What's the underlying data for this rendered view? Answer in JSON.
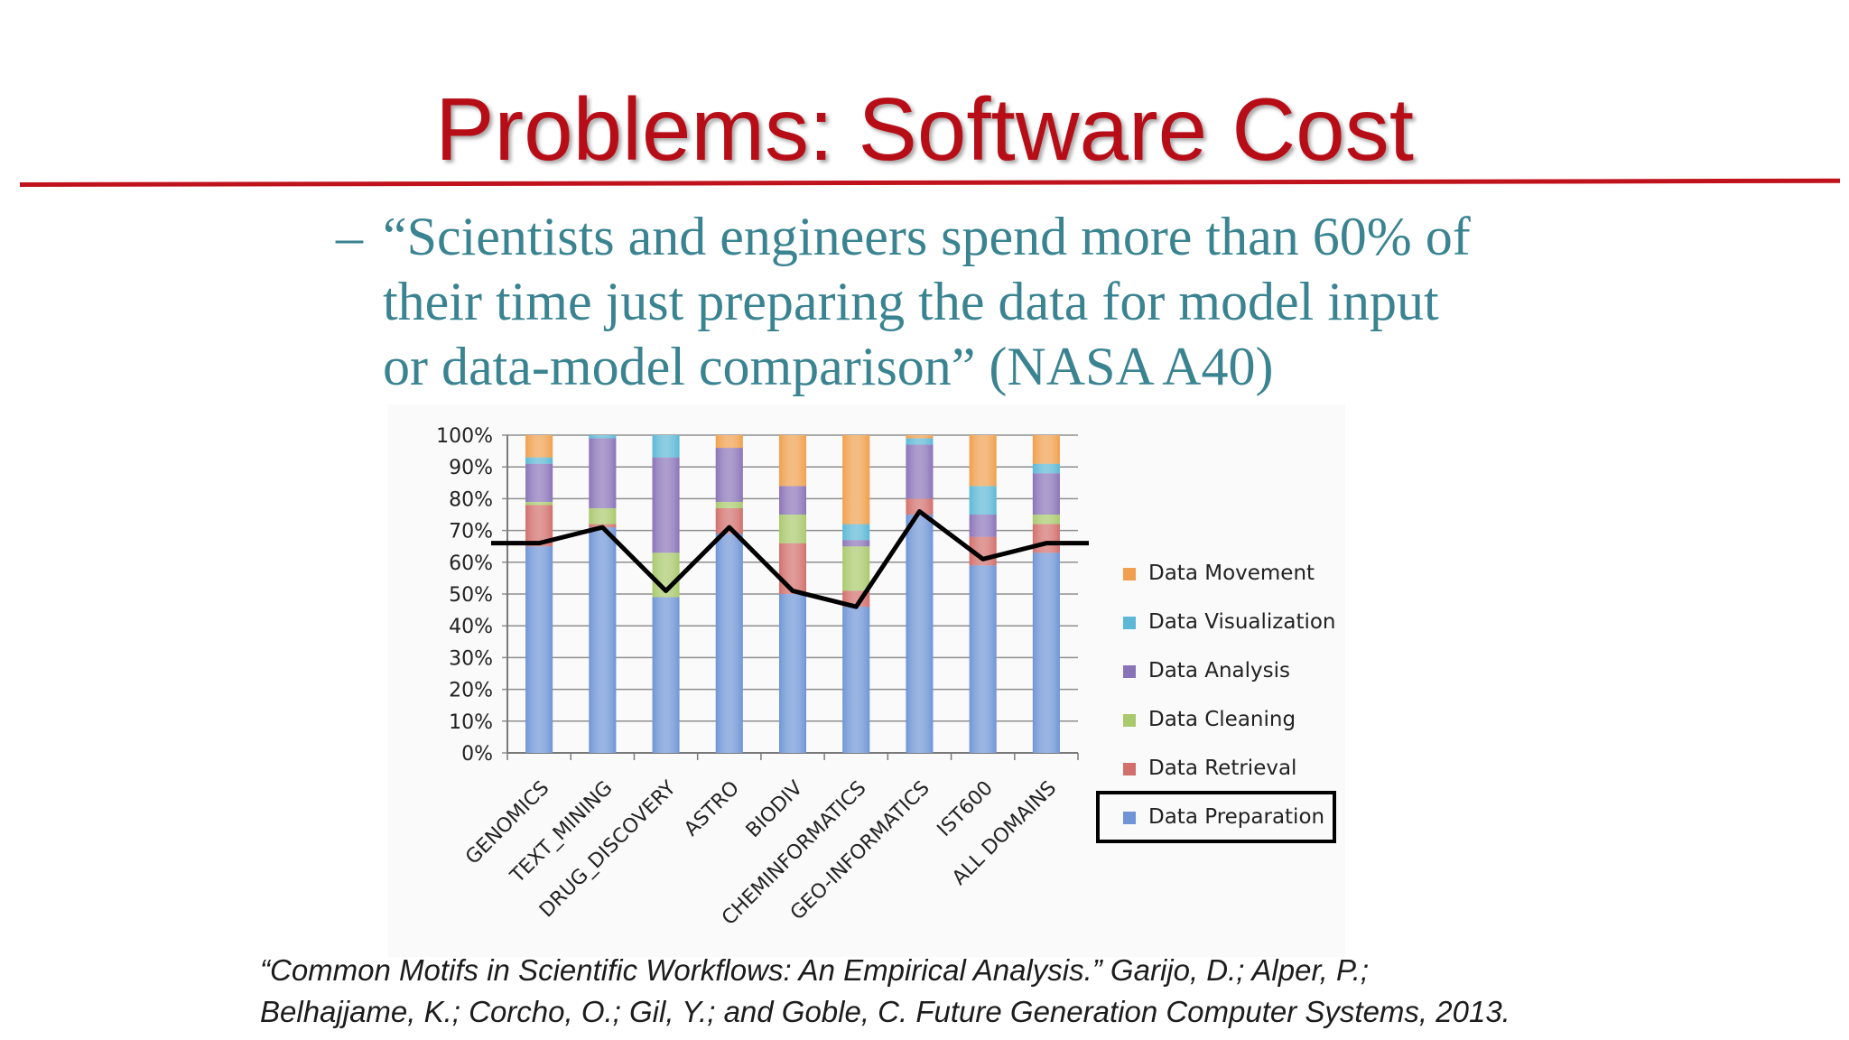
{
  "slide": {
    "title": "Problems: Software Cost",
    "quote": {
      "dash": "–",
      "line1": "“Scientists and engineers spend more than 60% of",
      "line2": "their time just preparing the data for model input",
      "line3": "or data-model comparison” (NASA A40)"
    },
    "citation": {
      "line1": "“Common Motifs in Scientific Workflows: An Empirical Analysis.” Garijo, D.; Alper, P.;",
      "line2": "Belhajjame, K.; Corcho, O.; Gil, Y.; and Goble, C. Future Generation Computer Systems, 2013."
    }
  },
  "chart_data": {
    "type": "bar",
    "stacked": true,
    "title": "",
    "xlabel": "",
    "ylabel": "",
    "ylim": [
      0,
      100
    ],
    "ytick_labels": [
      "0%",
      "10%",
      "20%",
      "30%",
      "40%",
      "50%",
      "60%",
      "70%",
      "80%",
      "90%",
      "100%"
    ],
    "grid": true,
    "legend_position": "right",
    "highlighted_legend_entry": "Data Preparation",
    "categories": [
      "GENOMICS",
      "TEXT_MINING",
      "DRUG_DISCOVERY",
      "ASTRO",
      "BIODIV",
      "CHEMINFORMATICS",
      "GEO-INFORMATICS",
      "IST600",
      "ALL DOMAINS"
    ],
    "series": [
      {
        "name": "Data Preparation",
        "color": "#6f95d6",
        "values": [
          65,
          71,
          49,
          69,
          50,
          46,
          75,
          59,
          63
        ]
      },
      {
        "name": "Data Retrieval",
        "color": "#d26f6c",
        "values": [
          13,
          1,
          0,
          8,
          16,
          5,
          5,
          9,
          9
        ]
      },
      {
        "name": "Data Cleaning",
        "color": "#a9c96c",
        "values": [
          1,
          5,
          14,
          2,
          9,
          14,
          0,
          0,
          3
        ]
      },
      {
        "name": "Data Analysis",
        "color": "#8a74b8",
        "values": [
          12,
          22,
          30,
          17,
          9,
          2,
          17,
          7,
          13
        ]
      },
      {
        "name": "Data Visualization",
        "color": "#5cb8d6",
        "values": [
          2,
          1,
          7,
          0,
          0,
          5,
          2,
          9,
          3
        ]
      },
      {
        "name": "Data Movement",
        "color": "#f0a04e",
        "values": [
          7,
          0,
          0,
          4,
          16,
          28,
          1,
          16,
          9
        ]
      }
    ],
    "overlay_line": {
      "color": "#000000",
      "values": [
        66,
        71,
        51,
        71,
        51,
        46,
        76,
        61,
        66
      ]
    }
  }
}
